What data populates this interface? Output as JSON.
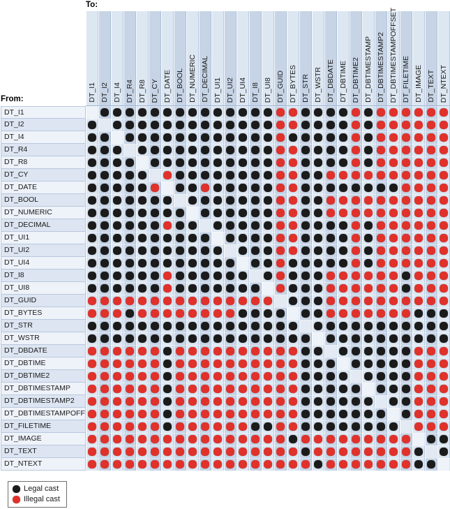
{
  "page": {
    "to_label": "To:",
    "from_label": "From:"
  },
  "legend": {
    "items": [
      {
        "label": "Legal cast"
      },
      {
        "label": "Illegal cast"
      }
    ]
  },
  "colors": {
    "legal": "#1b1b1b",
    "illegal": "#e0312b"
  },
  "chart_data": {
    "type": "heatmap",
    "x_axis_label": "To:",
    "y_axis_label": "From:",
    "legend_entries": [
      "Legal cast",
      "Illegal cast"
    ],
    "cell_encoding": {
      "B": "legal cast (black dot)",
      "R": "illegal cast (red dot)",
      ".": "empty (same type, diagonal)"
    },
    "categories": [
      "DT_I1",
      "DT_I2",
      "DT_I4",
      "DT_R4",
      "DT_R8",
      "DT_CY",
      "DT_DATE",
      "DT_BOOL",
      "DT_NUMERIC",
      "DT_DECIMAL",
      "DT_UI1",
      "DT_UI2",
      "DT_UI4",
      "DT_I8",
      "DT_UI8",
      "DT_GUID",
      "DT_BYTES",
      "DT_STR",
      "DT_WSTR",
      "DT_DBDATE",
      "DT_DBTIME",
      "DT_DBTIME2",
      "DT_DBTIMESTAMP",
      "DT_DBTIMESTAMP2",
      "DT_DBTIMESTAMPOFFSET",
      "DT_FILETIME",
      "DT_IMAGE",
      "DT_TEXT",
      "DT_NTEXT"
    ],
    "rows": [
      {
        "from": "DT_I1",
        "cells": ".BBBBBBBBBBBBBBRRBBBBRBRRRRRR"
      },
      {
        "from": "DT_I2",
        "cells": "B.BBBBBBBBBBBBBRRBBBBRBRRRRRR"
      },
      {
        "from": "DT_I4",
        "cells": "BB.BBBBBBBBBBBBRBBBBBRBRRRRRR"
      },
      {
        "from": "DT_R4",
        "cells": "BBB.BBBBBBBBBBBRRBBBBRBRRRRRR"
      },
      {
        "from": "DT_R8",
        "cells": "BBBB.BBBBBBBBBBRRBBBBRBRRRRRR"
      },
      {
        "from": "DT_CY",
        "cells": "BBBBB.RBBBBBBBBRRBBRRRRRRRRRR"
      },
      {
        "from": "DT_DATE",
        "cells": "BBBBBR.BBRBBBBBRRBBBBBBBBRRRR"
      },
      {
        "from": "DT_BOOL",
        "cells": "BBBBBBB.BBBBBBBRRBBRRRRRRRRRR"
      },
      {
        "from": "DT_NUMERIC",
        "cells": "BBBBBBBB.BBBBBBRRBBRRRRRRRRRR"
      },
      {
        "from": "DT_DECIMAL",
        "cells": "BBBBBBRBB.BBBBBRRBBBBRBRRRRRR"
      },
      {
        "from": "DT_UI1",
        "cells": "BBBBBBBBBB.BBBBRRBBBBRBRRRRRR"
      },
      {
        "from": "DT_UI2",
        "cells": "BBBBBBBBBBB.BBBRRBBBBRBRRRRRR"
      },
      {
        "from": "DT_UI4",
        "cells": "BBBBBBBBBBBB.BBRBBBBBRBRRRRRR"
      },
      {
        "from": "DT_I8",
        "cells": "BBBBBBRBBBBBB.BRBBBRRRRRRBRRR"
      },
      {
        "from": "DT_UI8",
        "cells": "BBBBBBRBBBBBBB.RBBBRRRRRRBRRR"
      },
      {
        "from": "DT_GUID",
        "cells": "RRRRRRRRRRRRRRR.BBBRRRRRRRRRR"
      },
      {
        "from": "DT_BYTES",
        "cells": "RRRBRRRRRRRRBBBB.BBRRRRRRRBBB"
      },
      {
        "from": "DT_STR",
        "cells": "BBBBBBBBBBBBBBBBB.BBBBBBBBBBB"
      },
      {
        "from": "DT_WSTR",
        "cells": "BBBBBBBBBBBBBBBBBB.BBBBBBBBBB"
      },
      {
        "from": "DT_DBDATE",
        "cells": "RRRRRRBRRRRRRRRRRBB.BBBBBBRRR"
      },
      {
        "from": "DT_DBTIME",
        "cells": "RRRRRRBRRRRRRRRRRBBB.BBBBBRRR"
      },
      {
        "from": "DT_DBTIME2",
        "cells": "RRRRRRBRRRRRRRRRRBBBB.BBBBRRR"
      },
      {
        "from": "DT_DBTIMESTAMP",
        "cells": "RRRRRRBRRRRRRRRRRBBBBB.BBBRRR"
      },
      {
        "from": "DT_DBTIMESTAMP2",
        "cells": "RRRRRRBRRRRRRRRRRBBBBBB.BBRRR"
      },
      {
        "from": "DT_DBTIMESTAMPOFFSET",
        "cells": "RRRRRRBRRRRRRRRRRBBBBBBB.BRRR"
      },
      {
        "from": "DT_FILETIME",
        "cells": "RRRRRRBRRRRRRBBRRBBBBBBBB.RRR"
      },
      {
        "from": "DT_IMAGE",
        "cells": "RRRRRRRRRRRRRRRRBRRRRRRRRR.BB"
      },
      {
        "from": "DT_TEXT",
        "cells": "RRRRRRRRRRRRRRRRRBRRRRRRRRB.B"
      },
      {
        "from": "DT_NTEXT",
        "cells": "RRRRRRRRRRRRRRRRRRBRRRRRRRBB."
      }
    ]
  }
}
